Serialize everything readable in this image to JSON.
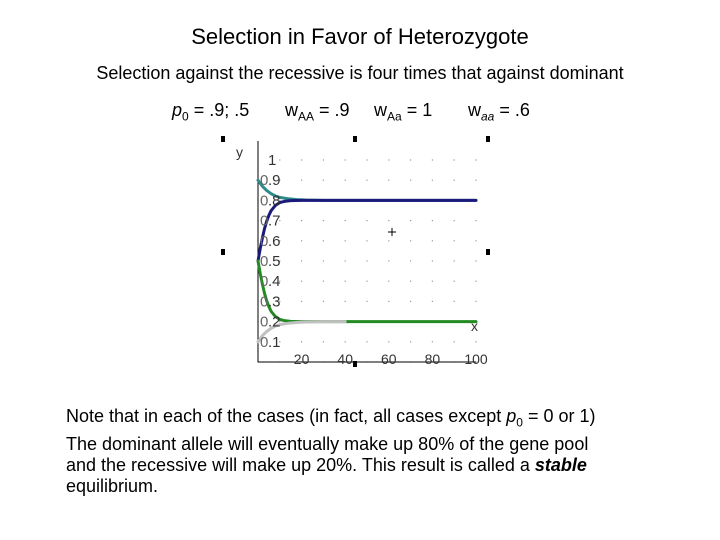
{
  "page": {
    "title": "Selection in Favor of Heterozygote",
    "subtitle": "Selection against the recessive is four times that against dominant"
  },
  "params": {
    "p0_sym": "p",
    "p0_sub": "0",
    "p0_val": " = .9; .5",
    "wAA_sym": "w",
    "wAA_sub": "AA",
    "wAA_val": " = .9",
    "wAa_sym": "w",
    "wAa_sub": "Aa",
    "wAa_val": " = 1",
    "waa_sym": "w",
    "waa_sub": "aa",
    "waa_val": " = .6"
  },
  "note": {
    "l1a": "Note that in each of the cases (in fact, all cases except ",
    "l1p": "p",
    "l1sub": "0",
    "l1b": " = 0 or 1)",
    "l2": "The dominant allele will eventually make up 80% of the gene pool",
    "l3a": "and the recessive will make up 20%.  This result is called a ",
    "l3b": "stable",
    "l4": "equilibrium."
  },
  "chart_data": {
    "type": "line",
    "xlabel": "x",
    "ylabel": "y",
    "xlim": [
      0,
      100
    ],
    "ylim": [
      0,
      1
    ],
    "x_tick_labels": [
      "20",
      "40",
      "60",
      "80",
      "100"
    ],
    "y_tick_labels": [
      ".1",
      ".2",
      ".3",
      ".4",
      ".5",
      ".6",
      ".7",
      ".8",
      ".9",
      "1"
    ],
    "y_tick_prefix": "0",
    "grid": "dotted",
    "series": [
      {
        "color": "#2e8b8b",
        "x": [
          0,
          2,
          4,
          6,
          8,
          10,
          14,
          18,
          22,
          30,
          40,
          50,
          100
        ],
        "y": [
          0.9,
          0.87,
          0.849,
          0.833,
          0.822,
          0.815,
          0.808,
          0.804,
          0.802,
          0.8,
          0.8,
          0.8,
          0.8
        ]
      },
      {
        "color": "#1a1a7a",
        "x": [
          0,
          1,
          2,
          3,
          4,
          5,
          6,
          8,
          10,
          12,
          15,
          20,
          25,
          30,
          50,
          100
        ],
        "y": [
          0.5,
          0.561,
          0.615,
          0.66,
          0.697,
          0.726,
          0.749,
          0.775,
          0.789,
          0.795,
          0.799,
          0.8,
          0.8,
          0.8,
          0.8,
          0.8
        ]
      },
      {
        "color": "#228b22",
        "x": [
          0,
          1,
          2,
          3,
          4,
          5,
          6,
          8,
          10,
          12,
          15,
          20,
          25,
          30,
          50,
          100
        ],
        "y": [
          0.5,
          0.439,
          0.385,
          0.34,
          0.303,
          0.274,
          0.251,
          0.225,
          0.211,
          0.205,
          0.201,
          0.2,
          0.2,
          0.2,
          0.2,
          0.2
        ]
      },
      {
        "color": "#c0c0c0",
        "x": [
          0,
          2,
          4,
          6,
          8,
          10,
          14,
          18,
          22,
          30,
          40
        ],
        "y": [
          0.1,
          0.13,
          0.151,
          0.167,
          0.178,
          0.185,
          0.192,
          0.196,
          0.198,
          0.2,
          0.2
        ]
      }
    ]
  }
}
